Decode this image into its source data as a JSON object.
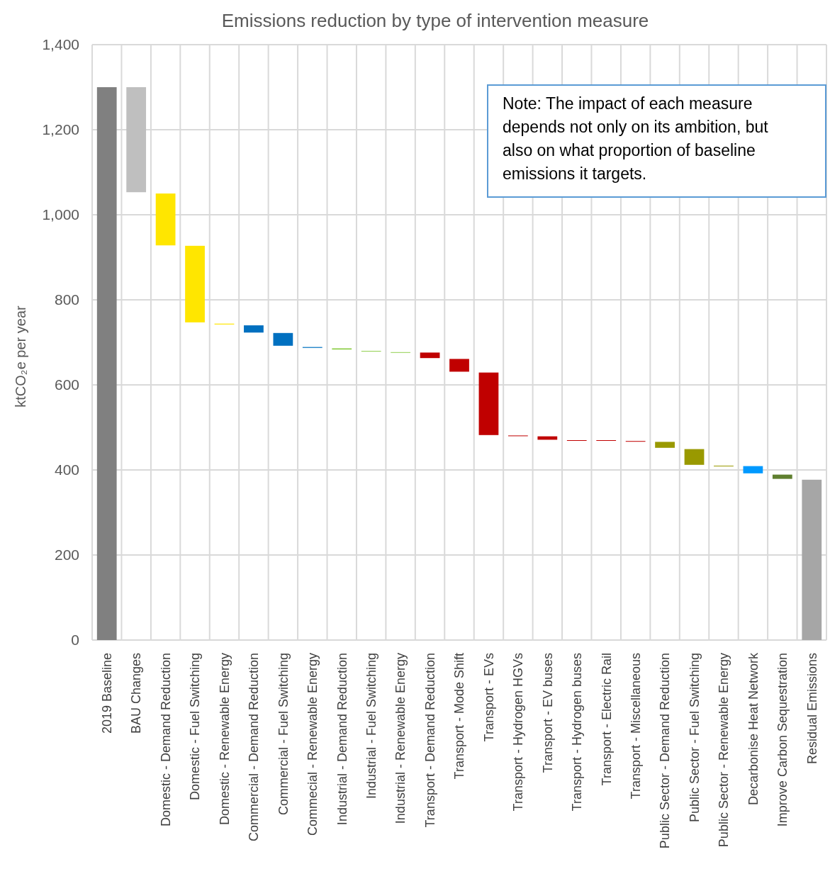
{
  "chart_data": {
    "type": "bar",
    "title": "Emissions reduction by type of intervention measure",
    "ylabel": "ktCO₂e per year",
    "categories": [
      "2019 Baseline",
      "BAU Changes",
      "Domestic - Demand Reduction",
      "Domestic - Fuel Switching",
      "Domestic - Renewable Energy",
      "Commercial - Demand Reduction",
      "Commercial - Fuel Switching",
      "Commecial - Renewable Energy",
      "Industrial - Demand Reduction",
      "Industrial - Fuel Switching",
      "Industrial - Renewable Energy",
      "Transport - Demand Reduction",
      "Transport - Mode Shift",
      "Transport - EVs",
      "Transport - Hydrogen HGVs",
      "Transport - EV buses",
      "Transport - Hydrogen buses",
      "Transport - Electric Rail",
      "Transport - Miscellaneous",
      "Public Sector - Demand Reduction",
      "Public Sector - Fuel Switching",
      "Public Sector - Renewable Energy",
      "Decarbonise Heat Network",
      "Improve Carbon Sequestration",
      "Residual Emissions"
    ],
    "values": [
      1300,
      247,
      122,
      180,
      2,
      17,
      30,
      2,
      3,
      1,
      1,
      13,
      30,
      147,
      1,
      8,
      1,
      1,
      1,
      14,
      37,
      1,
      17,
      10,
      377
    ],
    "base": [
      0,
      1053,
      928,
      747,
      742,
      723,
      692,
      687,
      683,
      679,
      676,
      663,
      631,
      482,
      480,
      471,
      469,
      469,
      467,
      452,
      412,
      409,
      392,
      379,
      0
    ],
    "colors": [
      "#808080",
      "#bfbfbf",
      "#ffe600",
      "#ffe600",
      "#ffe600",
      "#0070c0",
      "#0070c0",
      "#0070c0",
      "#92d050",
      "#92d050",
      "#92d050",
      "#c00000",
      "#c00000",
      "#c00000",
      "#c00000",
      "#c00000",
      "#c00000",
      "#c00000",
      "#c00000",
      "#999900",
      "#999900",
      "#999900",
      "#0099ff",
      "#5f7f2f",
      "#a6a6a6"
    ],
    "ylim": [
      0,
      1400
    ],
    "yticks": [
      {
        "value": 0,
        "label": "0"
      },
      {
        "value": 200,
        "label": "200"
      },
      {
        "value": 400,
        "label": "400"
      },
      {
        "value": 600,
        "label": "600"
      },
      {
        "value": 800,
        "label": "800"
      },
      {
        "value": 1000,
        "label": "1,000"
      },
      {
        "value": 1200,
        "label": "1,200"
      },
      {
        "value": 1400,
        "label": "1,400"
      }
    ],
    "grid": true,
    "annotations": [
      "Note: The impact of each measure depends not only on its ambition, but also on what proportion of baseline emissions it targets."
    ]
  }
}
